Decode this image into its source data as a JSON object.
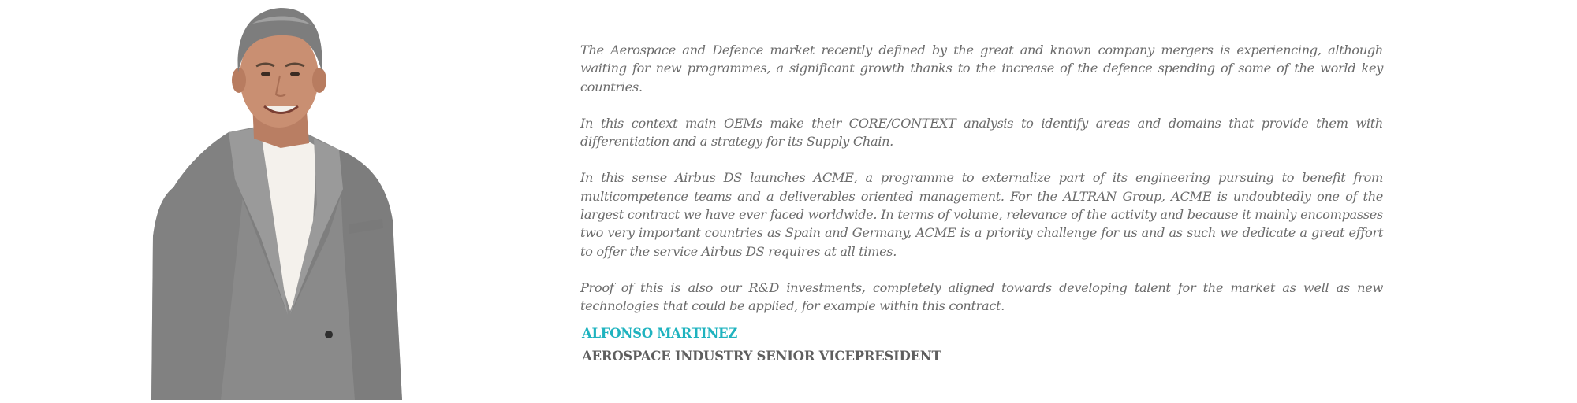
{
  "paragraphs": [
    "The Aerospace and Defence market recently defined by the great and known company mergers is experiencing, although waiting for new programmes, a significant growth thanks to the increase of the defence spending of some of the world key countries.",
    "In this context main OEMs make their CORE/CONTEXT analysis to identify areas and domains that provide them with differentiation and a strategy for its Supply Chain.",
    "In this sense Airbus DS launches ACME, a programme to externalize part of its engineering pursuing to benefit from multicompetence teams and a deliverables oriented management. For the ALTRAN Group, ACME is undoubtedly one of the largest contract  we have ever faced worldwide. In terms of volume, relevance of the activity and because it mainly encompasses two very important countries as Spain and Germany,  ACME is a priority challenge for us and as such we dedicate a great effort to offer the service Airbus DS requires at all times.",
    "Proof of this is also our R&D investments, completely aligned towards developing talent for the market as well as new technologies that could be applied, for example within this contract."
  ],
  "signature": {
    "name": "ALFONSO MARTINEZ",
    "title": "AEROSPACE INDUSTRY SENIOR VICEPRESIDENT"
  },
  "colors": {
    "body_text": "#6b6b6b",
    "name_accent": "#1fb3bf",
    "title_text": "#5f5f5f",
    "background": "#ffffff",
    "suit": "#8a8a8a",
    "shirt": "#f4f1ec",
    "skin": "#c98f72",
    "hair": "#7d7d7d"
  },
  "portrait": {
    "icon": "person-portrait-icon"
  }
}
